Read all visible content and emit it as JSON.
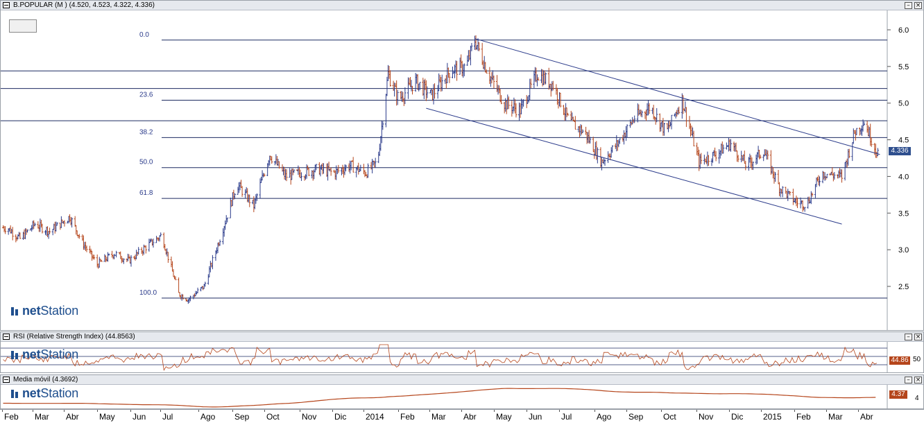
{
  "main_panel": {
    "title": "B.POPULAR (M ) (4.520, 4.523, 4.322, 4.336)",
    "last_price": "4.336",
    "brand_bold": "net",
    "brand_rest": "Station",
    "colors": {
      "up": "#2a3a8a",
      "down": "#b5451b",
      "line": "#2a3a8a",
      "grid": "#1c2a60",
      "tag": "#2f4f8e"
    }
  },
  "rsi_panel": {
    "title": "RSI (Relative Strength Index) (44.8563)",
    "value_tag": "44.86",
    "level_label": "50",
    "brand_bold": "net",
    "brand_rest": "Station",
    "color": "#b5451b"
  },
  "ma_panel": {
    "title": "Media móvil (4.3692)",
    "value_tag": "4.37",
    "level_label": "4",
    "brand_bold": "net",
    "brand_rest": "Station",
    "color": "#b5451b"
  },
  "buttons": {
    "minimize": "–",
    "close": "×"
  },
  "chart_data": {
    "type": "candlestick",
    "y_axis": {
      "ticks": [
        6.0,
        5.5,
        5.0,
        4.5,
        4.0,
        3.5,
        3.0,
        2.5
      ],
      "ylim": [
        2.0,
        6.15
      ]
    },
    "x_axis_labels": [
      "Feb",
      "Mar",
      "Abr",
      "May",
      "Jun",
      "Jul",
      "Ago",
      "Sep",
      "Oct",
      "Nov",
      "Dic",
      "2014",
      "Feb",
      "Mar",
      "Abr",
      "May",
      "Jun",
      "Jul",
      "Ago",
      "Sep",
      "Oct",
      "Nov",
      "Dic",
      "2015",
      "Feb",
      "Mar",
      "Abr"
    ],
    "fibonacci": [
      {
        "label": "0.0",
        "price": 5.86
      },
      {
        "label": "23.6",
        "price": 5.04
      },
      {
        "label": "38.2",
        "price": 4.53
      },
      {
        "label": "50.0",
        "price": 4.12
      },
      {
        "label": "61.8",
        "price": 3.7
      },
      {
        "label": "100.0",
        "price": 2.34
      }
    ],
    "horizontal_levels": [
      5.44,
      5.2,
      4.76
    ],
    "price_path": [
      [
        "2013-01-20",
        3.3
      ],
      [
        "2013-02-01",
        3.15
      ],
      [
        "2013-02-15",
        3.35
      ],
      [
        "2013-03-01",
        3.25
      ],
      [
        "2013-03-20",
        3.45
      ],
      [
        "2013-04-01",
        3.1
      ],
      [
        "2013-04-15",
        2.8
      ],
      [
        "2013-05-01",
        2.95
      ],
      [
        "2013-05-15",
        2.85
      ],
      [
        "2013-06-01",
        3.05
      ],
      [
        "2013-06-15",
        3.2
      ],
      [
        "2013-07-01",
        2.4
      ],
      [
        "2013-07-10",
        2.32
      ],
      [
        "2013-07-25",
        2.5
      ],
      [
        "2013-08-10",
        3.2
      ],
      [
        "2013-08-25",
        3.9
      ],
      [
        "2013-09-10",
        3.6
      ],
      [
        "2013-09-25",
        4.3
      ],
      [
        "2013-10-10",
        4.0
      ],
      [
        "2013-10-25",
        4.05
      ],
      [
        "2013-11-10",
        4.1
      ],
      [
        "2013-11-25",
        4.05
      ],
      [
        "2013-12-10",
        4.15
      ],
      [
        "2013-12-25",
        4.05
      ],
      [
        "2014-01-05",
        4.2
      ],
      [
        "2014-01-15",
        5.4
      ],
      [
        "2014-01-25",
        5.05
      ],
      [
        "2014-02-10",
        5.3
      ],
      [
        "2014-02-25",
        5.1
      ],
      [
        "2014-03-15",
        5.45
      ],
      [
        "2014-03-30",
        5.5
      ],
      [
        "2014-04-07",
        5.86
      ],
      [
        "2014-04-20",
        5.4
      ],
      [
        "2014-05-05",
        5.0
      ],
      [
        "2014-05-20",
        4.9
      ],
      [
        "2014-06-05",
        5.4
      ],
      [
        "2014-06-20",
        5.25
      ],
      [
        "2014-07-05",
        4.75
      ],
      [
        "2014-07-20",
        4.6
      ],
      [
        "2014-08-05",
        4.2
      ],
      [
        "2014-08-20",
        4.45
      ],
      [
        "2014-09-05",
        4.8
      ],
      [
        "2014-09-20",
        4.95
      ],
      [
        "2014-10-05",
        4.6
      ],
      [
        "2014-10-20",
        5.05
      ],
      [
        "2014-11-05",
        4.2
      ],
      [
        "2014-11-20",
        4.3
      ],
      [
        "2014-12-05",
        4.45
      ],
      [
        "2014-12-20",
        4.15
      ],
      [
        "2015-01-05",
        4.35
      ],
      [
        "2015-01-20",
        3.85
      ],
      [
        "2015-02-05",
        3.65
      ],
      [
        "2015-02-15",
        3.62
      ],
      [
        "2015-03-01",
        4.05
      ],
      [
        "2015-03-20",
        4.0
      ],
      [
        "2015-04-01",
        4.6
      ],
      [
        "2015-04-10",
        4.75
      ],
      [
        "2015-04-22",
        4.34
      ]
    ],
    "trendlines": [
      {
        "from": [
          "2014-04-07",
          5.88
        ],
        "to": [
          "2015-04-25",
          4.3
        ]
      },
      {
        "from": [
          "2014-02-20",
          4.93
        ],
        "to": [
          "2015-03-20",
          3.35
        ]
      }
    ],
    "last": 4.336
  }
}
